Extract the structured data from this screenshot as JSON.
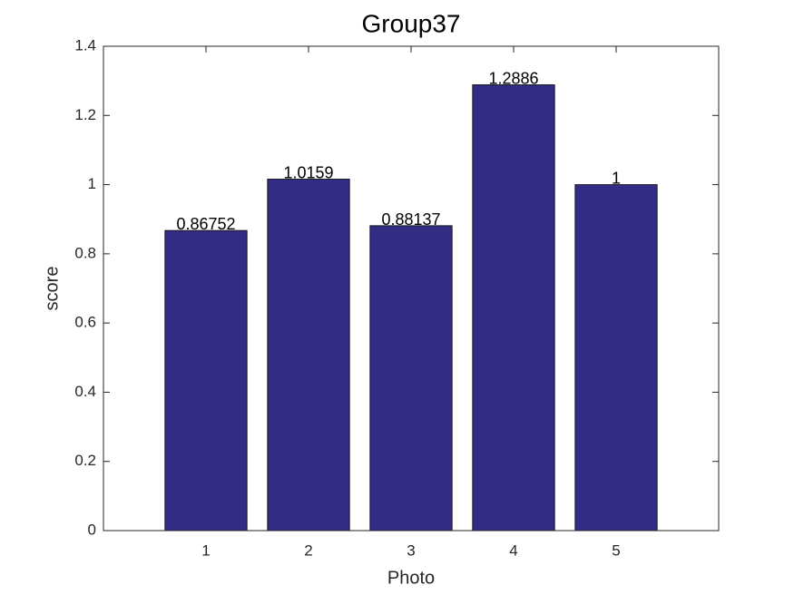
{
  "chart_data": {
    "type": "bar",
    "title": "Group37",
    "xlabel": "Photo",
    "ylabel": "score",
    "x": [
      1,
      2,
      3,
      4,
      5
    ],
    "values": [
      0.86752,
      1.0159,
      0.88137,
      1.2886,
      1
    ],
    "color": "#332c85",
    "xlim": [
      0,
      6
    ],
    "xticks": [
      1,
      2,
      3,
      4,
      5
    ],
    "ylim": [
      0,
      1.4
    ],
    "yticks": [
      0,
      0.2,
      0.4,
      0.6,
      0.8,
      1,
      1.2,
      1.4
    ],
    "grid": false
  }
}
